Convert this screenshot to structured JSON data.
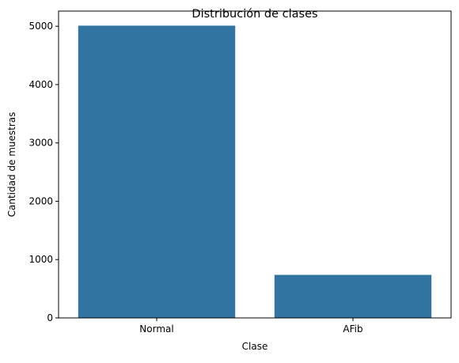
{
  "chart_data": {
    "type": "bar",
    "title": "Distribución de clases",
    "xlabel": "Clase",
    "ylabel": "Cantidad de muestras",
    "categories": [
      "Normal",
      "AFib"
    ],
    "values": [
      5010,
      738
    ],
    "ylim": [
      0,
      5260
    ],
    "yticks": [
      0,
      1000,
      2000,
      3000,
      4000,
      5000
    ],
    "ytick_labels": [
      "0",
      "1000",
      "2000",
      "3000",
      "4000",
      "5000"
    ],
    "grid": false,
    "legend": "none",
    "bar_color": "#3274a1"
  }
}
